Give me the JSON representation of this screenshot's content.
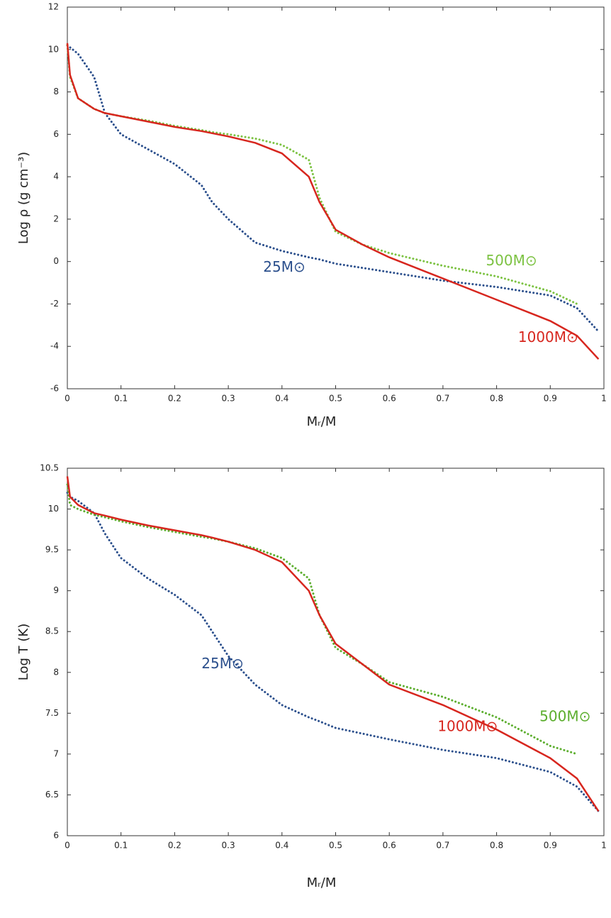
{
  "chart_data": [
    {
      "type": "line",
      "xlabel": "Mᵣ/M",
      "ylabel": "Log ρ (g cm⁻³)",
      "x": [
        0,
        0.005,
        0.02,
        0.05,
        0.07,
        0.1,
        0.15,
        0.2,
        0.25,
        0.27,
        0.3,
        0.35,
        0.4,
        0.45,
        0.47,
        0.5,
        0.55,
        0.6,
        0.7,
        0.8,
        0.9,
        0.95,
        0.99
      ],
      "xlim": [
        0,
        1
      ],
      "xticks": [
        0,
        0.1,
        0.2,
        0.3,
        0.4,
        0.5,
        0.6,
        0.7,
        0.8,
        0.9,
        1
      ],
      "ylim": [
        -6,
        12
      ],
      "yticks": [
        -6,
        -4,
        -2,
        0,
        2,
        4,
        6,
        8,
        10,
        12
      ],
      "series": [
        {
          "name": "25M⊙",
          "color": "#2b4f8c",
          "style": "dotted",
          "values": [
            10.2,
            10.1,
            9.8,
            8.7,
            7.0,
            6.0,
            5.3,
            4.6,
            3.6,
            2.8,
            2.0,
            0.9,
            0.5,
            0.2,
            0.1,
            -0.1,
            -0.3,
            -0.5,
            -0.9,
            -1.2,
            -1.6,
            -2.2,
            -3.3
          ]
        },
        {
          "name": "500M⊙",
          "color": "#7cc242",
          "style": "dotted",
          "values": [
            10.2,
            8.7,
            7.7,
            7.2,
            7.0,
            6.85,
            6.65,
            6.4,
            6.2,
            6.1,
            6.0,
            5.8,
            5.5,
            4.8,
            3.0,
            1.4,
            0.8,
            0.4,
            -0.2,
            -0.7,
            -1.4,
            -2.0,
            null
          ]
        },
        {
          "name": "1000M⊙",
          "color": "#d7261e",
          "style": "solid",
          "values": [
            10.3,
            8.8,
            7.7,
            7.2,
            7.0,
            6.85,
            6.6,
            6.35,
            6.15,
            6.05,
            5.9,
            5.6,
            5.1,
            4.0,
            2.8,
            1.5,
            0.8,
            0.2,
            -0.8,
            -1.8,
            -2.8,
            -3.5,
            -4.6
          ]
        }
      ]
    },
    {
      "type": "line",
      "xlabel": "Mᵣ/M",
      "ylabel": "Log T (K)",
      "x": [
        0,
        0.005,
        0.02,
        0.05,
        0.07,
        0.1,
        0.15,
        0.2,
        0.25,
        0.27,
        0.3,
        0.35,
        0.4,
        0.45,
        0.47,
        0.5,
        0.55,
        0.6,
        0.7,
        0.8,
        0.9,
        0.95,
        0.99
      ],
      "xlim": [
        0,
        1
      ],
      "xticks": [
        0,
        0.1,
        0.2,
        0.3,
        0.4,
        0.5,
        0.6,
        0.7,
        0.8,
        0.9,
        1
      ],
      "ylim": [
        6,
        10.5
      ],
      "yticks": [
        6,
        6.5,
        7,
        7.5,
        8,
        8.5,
        9,
        9.5,
        10,
        10.5
      ],
      "series": [
        {
          "name": "25M⊙",
          "color": "#2b4f8c",
          "style": "dotted",
          "values": [
            10.2,
            10.15,
            10.1,
            9.95,
            9.7,
            9.4,
            9.15,
            8.95,
            8.7,
            8.5,
            8.2,
            7.85,
            7.6,
            7.45,
            7.4,
            7.32,
            7.25,
            7.18,
            7.05,
            6.95,
            6.78,
            6.6,
            6.3
          ]
        },
        {
          "name": "500M⊙",
          "color": "#5cae2e",
          "style": "dotted",
          "values": [
            10.3,
            10.05,
            10.0,
            9.93,
            9.9,
            9.85,
            9.78,
            9.72,
            9.66,
            9.64,
            9.6,
            9.52,
            9.4,
            9.15,
            8.7,
            8.3,
            8.1,
            7.88,
            7.7,
            7.45,
            7.1,
            7.0,
            null
          ]
        },
        {
          "name": "1000M⊙",
          "color": "#d7261e",
          "style": "solid",
          "values": [
            10.4,
            10.15,
            10.05,
            9.95,
            9.92,
            9.87,
            9.8,
            9.74,
            9.68,
            9.65,
            9.6,
            9.5,
            9.35,
            9.0,
            8.7,
            8.35,
            8.1,
            7.85,
            7.6,
            7.3,
            6.95,
            6.7,
            6.3
          ]
        }
      ]
    }
  ]
}
